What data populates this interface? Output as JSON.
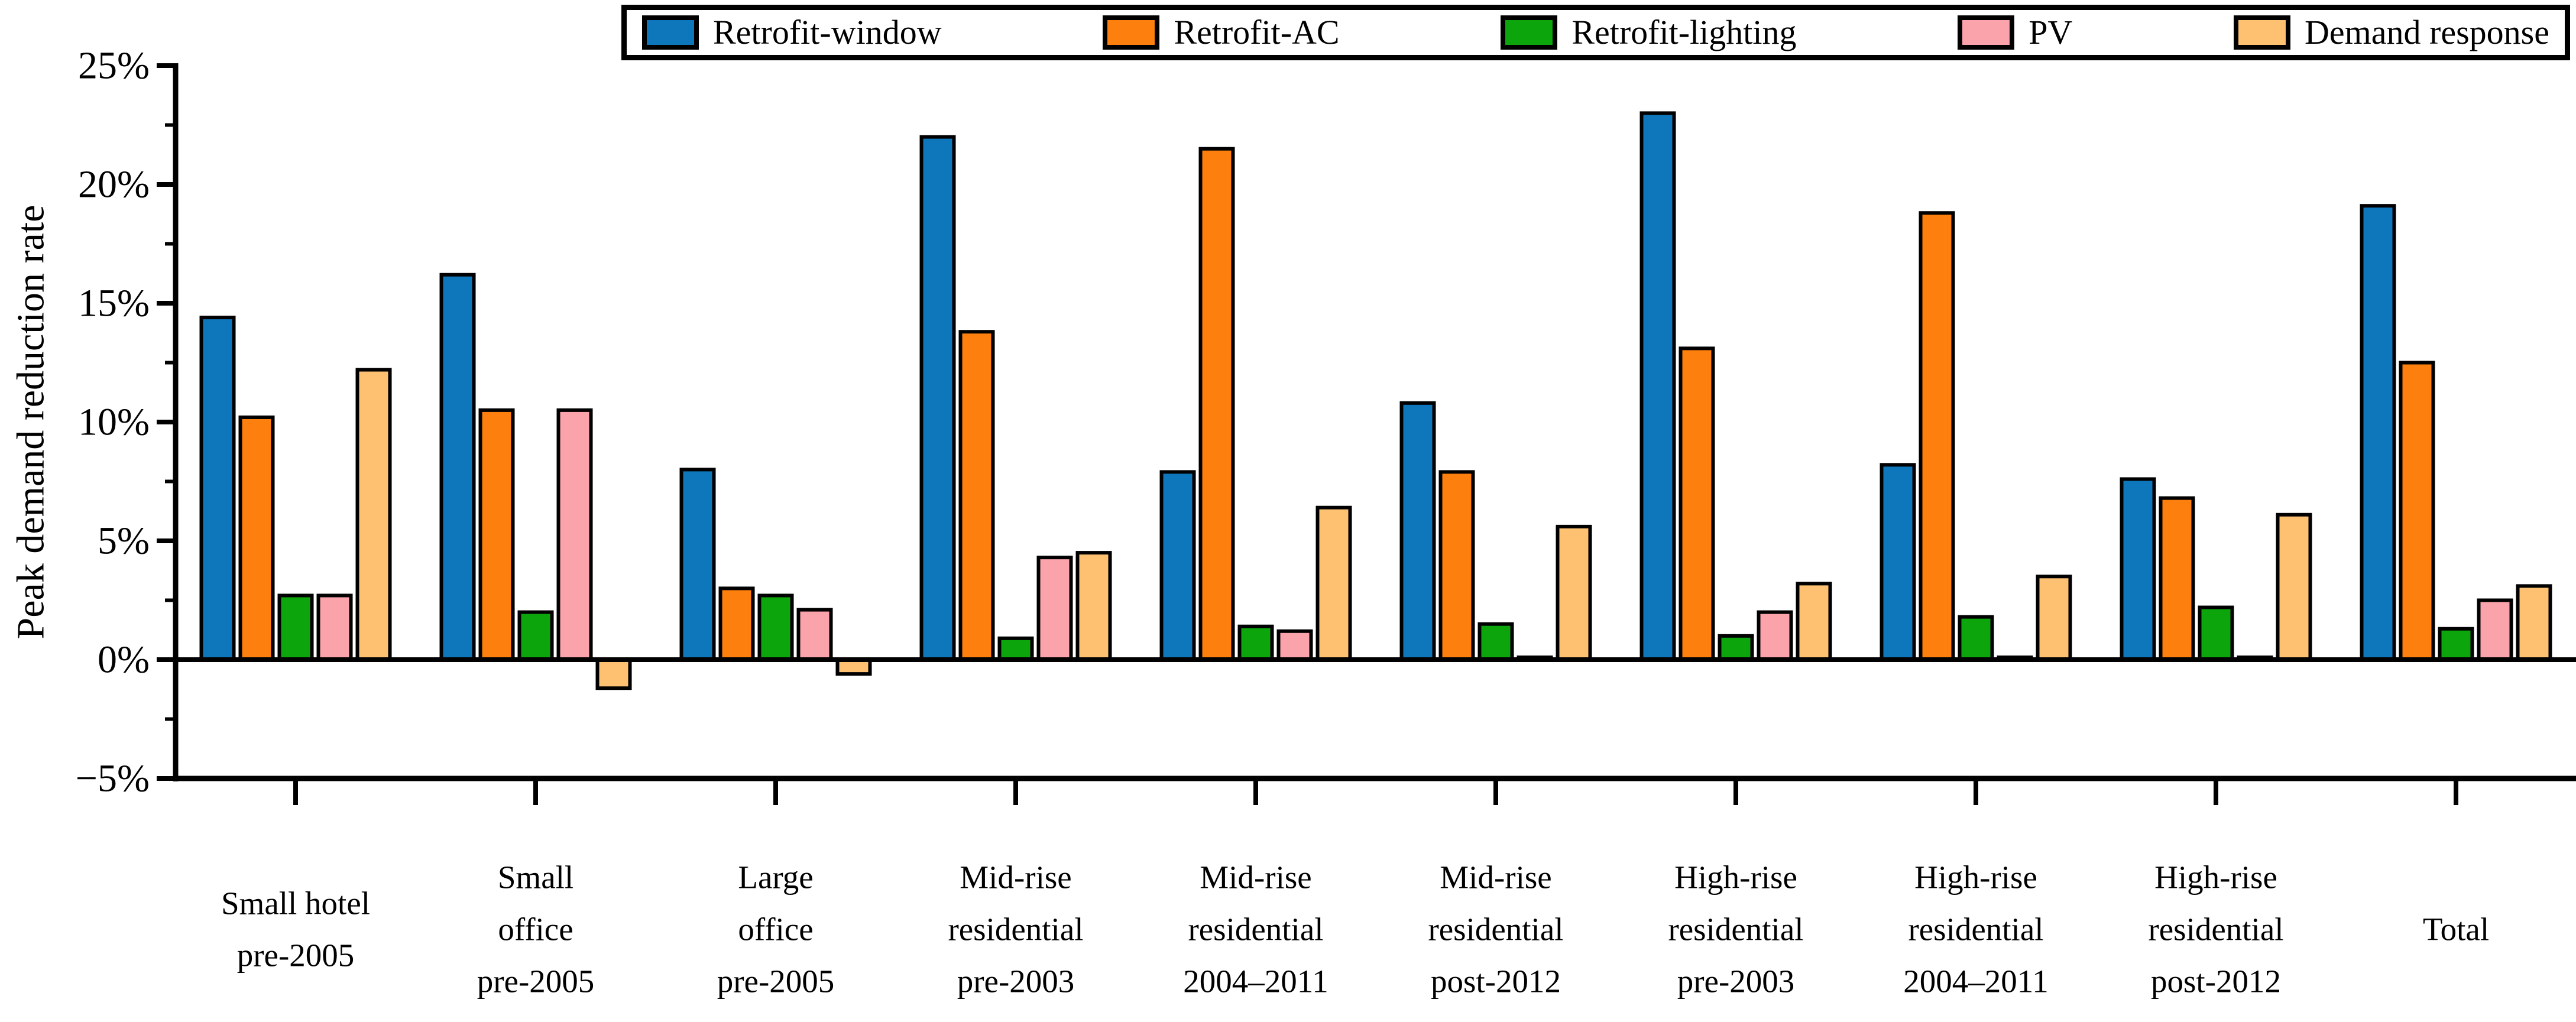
{
  "figure": {
    "kind": "grouped-bar-figure",
    "background": "#ffffff",
    "axis_color": "#000000"
  },
  "chart_data": {
    "type": "bar",
    "title": "",
    "xlabel": "",
    "ylabel": "Peak demand reduction rate",
    "ylim": [
      -5,
      25
    ],
    "y_unit": "%",
    "y_tick_labels": [
      "25%",
      "20%",
      "15%",
      "10%",
      "5%",
      "0%",
      "−5%"
    ],
    "y_tick_values": [
      25,
      20,
      15,
      10,
      5,
      0,
      -5
    ],
    "y_minor_tick_values": [
      22.5,
      17.5,
      12.5,
      7.5,
      2.5,
      -2.5
    ],
    "grid": false,
    "legend_position": "top",
    "bar_outline_color": "#000000",
    "categories": [
      "Small hotel\npre-2005",
      "Small\noffice\npre-2005",
      "Large\noffice\npre-2005",
      "Mid-rise\nresidential\npre-2003",
      "Mid-rise\nresidential\n2004–2011",
      "Mid-rise\nresidential\npost-2012",
      "High-rise\nresidential\npre-2003",
      "High-rise\nresidential\n2004–2011",
      "High-rise\nresidential\npost-2012",
      "Total"
    ],
    "series": [
      {
        "name": "Retrofit-window",
        "color": "#0e77bb",
        "values": [
          14.4,
          16.2,
          8.0,
          22.0,
          7.9,
          10.8,
          23.0,
          8.2,
          7.6,
          19.1
        ]
      },
      {
        "name": "Retrofit-AC",
        "color": "#fd7f0e",
        "values": [
          10.2,
          10.5,
          3.0,
          13.8,
          21.5,
          7.9,
          13.1,
          18.8,
          6.8,
          12.5
        ]
      },
      {
        "name": "Retrofit-lighting",
        "color": "#0ca60c",
        "values": [
          2.7,
          2.0,
          2.7,
          0.9,
          1.4,
          1.5,
          1.0,
          1.8,
          2.2,
          1.3
        ]
      },
      {
        "name": "PV",
        "color": "#fba3ab",
        "values": [
          2.7,
          10.5,
          2.1,
          4.3,
          1.2,
          0.1,
          2.0,
          0.1,
          0.1,
          2.5
        ]
      },
      {
        "name": "Demand response",
        "color": "#fdc171",
        "values": [
          12.2,
          -1.2,
          -0.6,
          4.5,
          6.4,
          5.6,
          3.2,
          3.5,
          6.1,
          3.1
        ]
      }
    ]
  }
}
